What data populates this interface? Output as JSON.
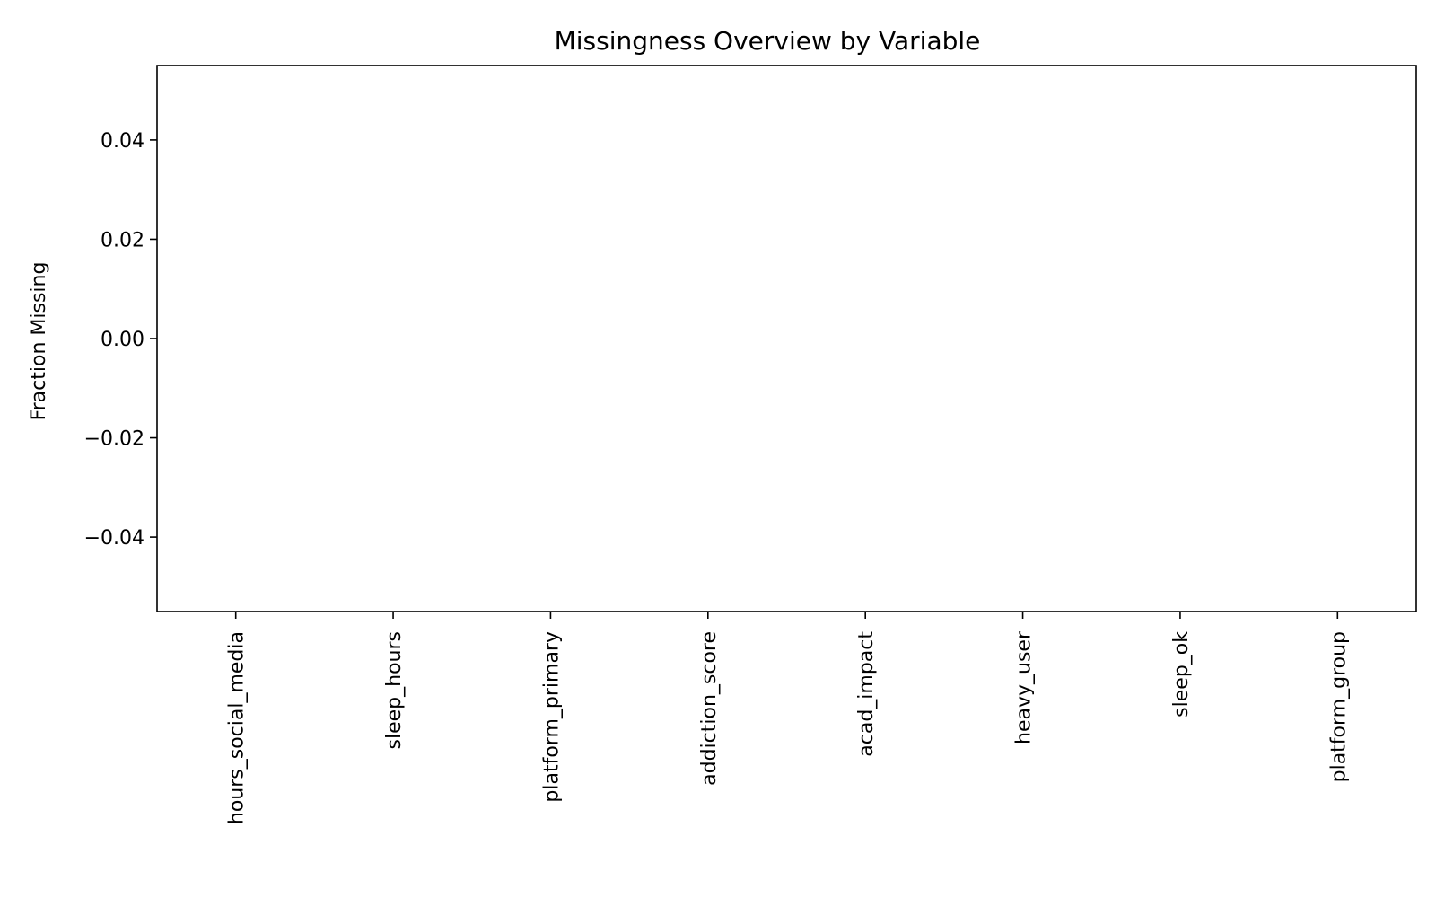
{
  "chart_data": {
    "type": "bar",
    "title": "Missingness Overview by Variable",
    "xlabel": "",
    "ylabel": "Fraction Missing",
    "categories": [
      "hours_social_media",
      "sleep_hours",
      "platform_primary",
      "addiction_score",
      "acad_impact",
      "heavy_user",
      "sleep_ok",
      "platform_group"
    ],
    "values": [
      0,
      0,
      0,
      0,
      0,
      0,
      0,
      0
    ],
    "ylim": [
      -0.055,
      0.055
    ],
    "yticks": [
      -0.04,
      -0.02,
      0.0,
      0.02,
      0.04
    ],
    "ytick_labels": [
      "−0.04",
      "−0.02",
      "0.00",
      "0.02",
      "0.04"
    ],
    "bar_color": "#1f77b4",
    "grid": false,
    "legend": "none"
  }
}
